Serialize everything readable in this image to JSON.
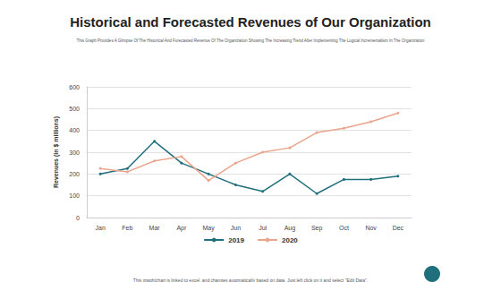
{
  "chart_data": {
    "type": "line",
    "title": "Historical and Forecasted Revenues of Our Organization",
    "subtitle": "This Graph Provides A Glimpse Of The Historical And Forecasted Revenue Of The Organization Showing The Increasing Trend After Implementing The Logical Incrementalism In The Organization",
    "footnote": "This graph/chart is linked to excel, and changes automatically based on data. Just left click on it and select \"Edit Data\".",
    "y_label": "Revenues (in $ millions)",
    "categories": [
      "Jan",
      "Feb",
      "Mar",
      "Apr",
      "May",
      "Jun",
      "Jul",
      "Aug",
      "Sep",
      "Oct",
      "Nov",
      "Dec"
    ],
    "series": [
      {
        "name": "2019",
        "color": "#1f6f7c",
        "values": [
          200,
          225,
          350,
          250,
          200,
          150,
          120,
          200,
          110,
          175,
          175,
          190
        ]
      },
      {
        "name": "2020",
        "color": "#eaa58c",
        "values": [
          225,
          210,
          260,
          280,
          170,
          250,
          300,
          320,
          390,
          410,
          440,
          480
        ]
      }
    ],
    "ylim": [
      0,
      600
    ],
    "yticks": [
      0,
      100,
      200,
      300,
      400,
      500,
      600
    ],
    "grid": true,
    "legend": "bottom",
    "marker": "circle"
  }
}
